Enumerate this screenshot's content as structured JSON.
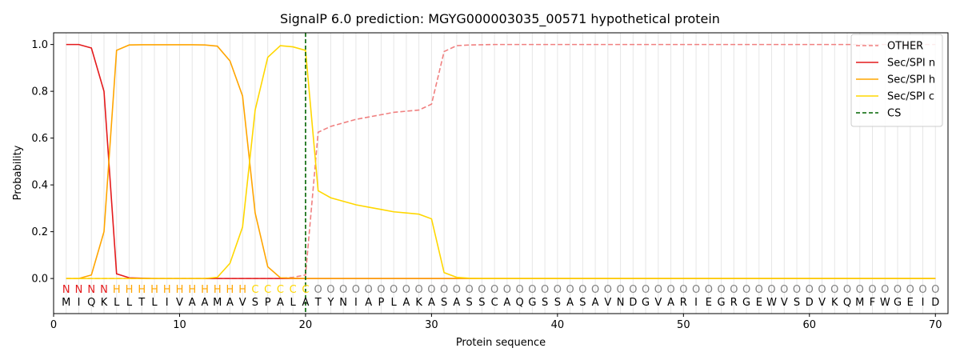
{
  "chart_data": {
    "type": "line",
    "title": "SignalP 6.0 prediction: MGYG000003035_00571 hypothetical protein",
    "xlabel": "Protein sequence",
    "ylabel": "Probability",
    "xlim": [
      0,
      71
    ],
    "ylim": [
      -0.15,
      1.05
    ],
    "xticks": [
      "0",
      "10",
      "20",
      "30",
      "40",
      "50",
      "60",
      "70"
    ],
    "yticks": [
      "0.0",
      "0.2",
      "0.4",
      "0.6",
      "0.8",
      "1.0"
    ],
    "legend_position": "top-right",
    "grid": "vertical lines at each residue",
    "sequence": [
      "M",
      "I",
      "Q",
      "K",
      "L",
      "L",
      "T",
      "L",
      "I",
      "V",
      "A",
      "A",
      "M",
      "A",
      "V",
      "S",
      "P",
      "A",
      "L",
      "A",
      "T",
      "Y",
      "N",
      "I",
      "A",
      "P",
      "L",
      "A",
      "K",
      "A",
      "S",
      "A",
      "S",
      "S",
      "C",
      "A",
      "Q",
      "G",
      "S",
      "S",
      "A",
      "S",
      "A",
      "V",
      "N",
      "D",
      "G",
      "V",
      "A",
      "R",
      "I",
      "E",
      "G",
      "R",
      "G",
      "E",
      "W",
      "V",
      "S",
      "D",
      "V",
      "K",
      "Q",
      "M",
      "F",
      "W",
      "G",
      "E",
      "I",
      "D"
    ],
    "region_labels": [
      "N",
      "N",
      "N",
      "N",
      "H",
      "H",
      "H",
      "H",
      "H",
      "H",
      "H",
      "H",
      "H",
      "H",
      "H",
      "C",
      "C",
      "C",
      "C",
      "C",
      "O",
      "O",
      "O",
      "O",
      "O",
      "O",
      "O",
      "O",
      "O",
      "O",
      "O",
      "O",
      "O",
      "O",
      "O",
      "O",
      "O",
      "O",
      "O",
      "O",
      "O",
      "O",
      "O",
      "O",
      "O",
      "O",
      "O",
      "O",
      "O",
      "O",
      "O",
      "O",
      "O",
      "O",
      "O",
      "O",
      "O",
      "O",
      "O",
      "O",
      "O",
      "O",
      "O",
      "O",
      "O",
      "O",
      "O",
      "O",
      "O",
      "O"
    ],
    "region_colors": {
      "N": "#e41a1c",
      "H": "#ffa500",
      "C": "#ffd700",
      "O": "#808080"
    },
    "cleavage_site": 20,
    "series": [
      {
        "name": "OTHER",
        "color": "#f08080",
        "style": "dashed",
        "values": [
          0,
          0,
          0,
          0,
          0,
          0,
          0,
          0,
          0,
          0,
          0,
          0,
          0,
          0,
          0,
          0,
          0,
          0,
          0.005,
          0.015,
          0.625,
          0.65,
          0.665,
          0.68,
          0.69,
          0.7,
          0.71,
          0.715,
          0.72,
          0.745,
          0.97,
          0.995,
          0.998,
          0.999,
          1,
          1,
          1,
          1,
          1,
          1,
          1,
          1,
          1,
          1,
          1,
          1,
          1,
          1,
          1,
          1,
          1,
          1,
          1,
          1,
          1,
          1,
          1,
          1,
          1,
          1,
          1,
          1,
          1,
          1,
          1,
          1,
          1,
          1,
          1,
          1
        ]
      },
      {
        "name": "Sec/SPI n",
        "color": "#e41a1c",
        "style": "solid",
        "values": [
          1,
          1,
          0.985,
          0.8,
          0.02,
          0.003,
          0.001,
          0,
          0,
          0,
          0,
          0,
          0,
          0,
          0,
          0,
          0,
          0,
          0,
          0,
          0,
          0,
          0,
          0,
          0,
          0,
          0,
          0,
          0,
          0,
          0,
          0,
          0,
          0,
          0,
          0,
          0,
          0,
          0,
          0,
          0,
          0,
          0,
          0,
          0,
          0,
          0,
          0,
          0,
          0,
          0,
          0,
          0,
          0,
          0,
          0,
          0,
          0,
          0,
          0,
          0,
          0,
          0,
          0,
          0,
          0,
          0,
          0,
          0,
          0
        ]
      },
      {
        "name": "Sec/SPI h",
        "color": "#ffa500",
        "style": "solid",
        "values": [
          0,
          0,
          0.015,
          0.2,
          0.975,
          0.998,
          0.999,
          0.999,
          0.999,
          0.999,
          0.999,
          0.998,
          0.993,
          0.93,
          0.78,
          0.28,
          0.05,
          0.003,
          0.001,
          0,
          0,
          0,
          0,
          0,
          0,
          0,
          0,
          0,
          0,
          0,
          0,
          0,
          0,
          0,
          0,
          0,
          0,
          0,
          0,
          0,
          0,
          0,
          0,
          0,
          0,
          0,
          0,
          0,
          0,
          0,
          0,
          0,
          0,
          0,
          0,
          0,
          0,
          0,
          0,
          0,
          0,
          0,
          0,
          0,
          0,
          0,
          0,
          0,
          0,
          0
        ]
      },
      {
        "name": "Sec/SPI c",
        "color": "#ffd700",
        "style": "solid",
        "values": [
          0,
          0,
          0,
          0,
          0,
          0,
          0,
          0,
          0,
          0,
          0,
          0,
          0.005,
          0.065,
          0.22,
          0.72,
          0.945,
          0.995,
          0.99,
          0.975,
          0.375,
          0.345,
          0.33,
          0.315,
          0.305,
          0.295,
          0.285,
          0.28,
          0.275,
          0.255,
          0.025,
          0.005,
          0.001,
          0,
          0,
          0,
          0,
          0,
          0,
          0,
          0,
          0,
          0,
          0,
          0,
          0,
          0,
          0,
          0,
          0,
          0,
          0,
          0,
          0,
          0,
          0,
          0,
          0,
          0,
          0,
          0,
          0,
          0,
          0,
          0,
          0,
          0,
          0,
          0,
          0
        ]
      },
      {
        "name": "CS",
        "color": "#006400",
        "style": "dashed",
        "values": []
      }
    ]
  }
}
